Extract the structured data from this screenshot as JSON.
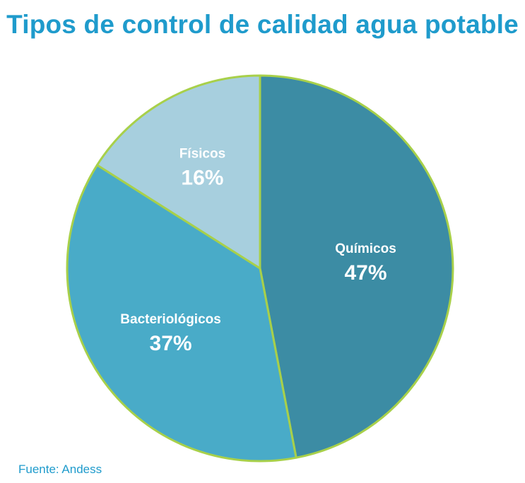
{
  "chart_data": {
    "type": "pie",
    "title": "Tipos de control de calidad agua potable",
    "slices": [
      {
        "label": "Químicos",
        "value": 47,
        "value_label": "47%",
        "color": "#3c8ca4"
      },
      {
        "label": "Bacteriológicos",
        "value": 37,
        "value_label": "37%",
        "color": "#49abc8"
      },
      {
        "label": "Físicos",
        "value": 16,
        "value_label": "16%",
        "color": "#a7cfde"
      }
    ],
    "border_color": "#a8d04a",
    "label_color": "#ffffff",
    "start": "top (12 o'clock), clockwise"
  },
  "footer": {
    "source": "Fuente: Andess"
  },
  "colors": {
    "title": "#1f9bcc",
    "source": "#1f9bcc"
  }
}
